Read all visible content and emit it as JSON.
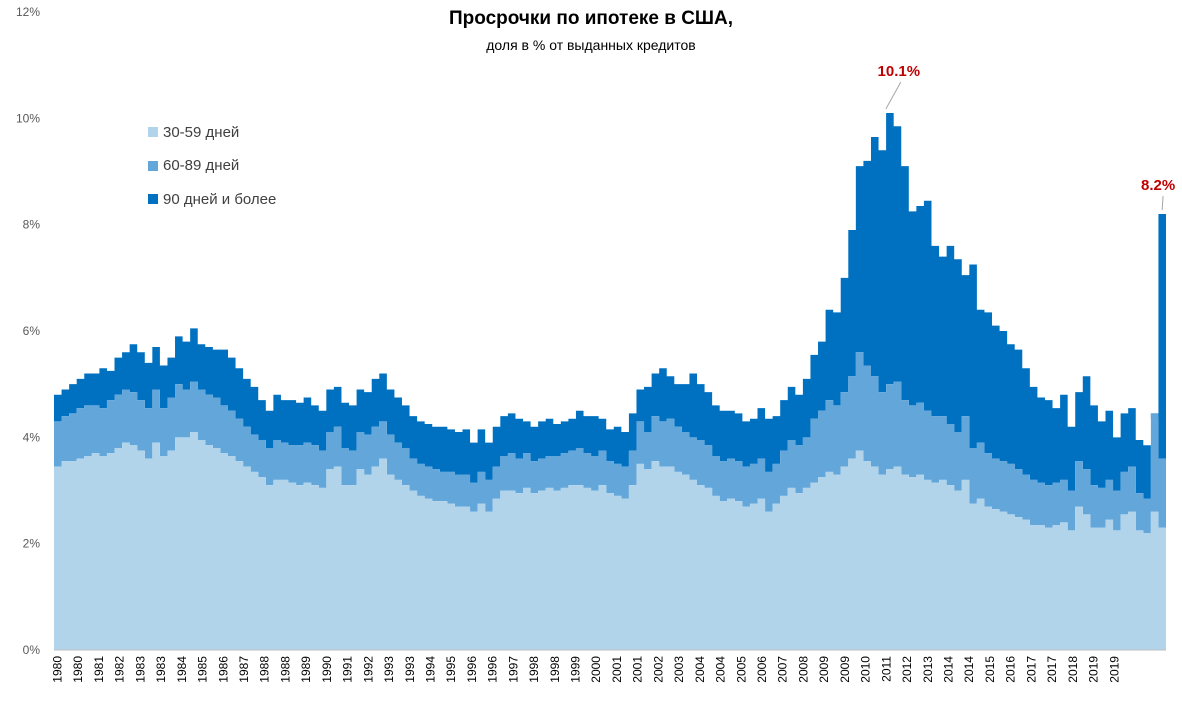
{
  "chart_data": {
    "type": "stacked-area",
    "title": "Просрочки по ипотеке в США,",
    "subtitle": "доля в % от выданных кредитов",
    "ylim": [
      0,
      12
    ],
    "y_ticks": [
      "0%",
      "2%",
      "4%",
      "6%",
      "8%",
      "10%",
      "12%"
    ],
    "legend": [
      "30-59 дней",
      "60-89 дней",
      "90 дней и более"
    ],
    "colors": [
      "#b2d4eb",
      "#63a6da",
      "#0070c0"
    ],
    "annotations": [
      {
        "label": "10.1%",
        "year": 2010.0,
        "value": 10.1
      },
      {
        "label": "8.2%",
        "year": 2020.0,
        "value": 8.2
      }
    ],
    "x_labels": [
      "1980",
      "1980",
      "1981",
      "1982",
      "1983",
      "1983",
      "1984",
      "1985",
      "1986",
      "1987",
      "1988",
      "1988",
      "1989",
      "1990",
      "1991",
      "1992",
      "1993",
      "1993",
      "1994",
      "1995",
      "1996",
      "1996",
      "1997",
      "1998",
      "1998",
      "1999",
      "2000",
      "2001",
      "2001",
      "2002",
      "2003",
      "2004",
      "2004",
      "2005",
      "2006",
      "2007",
      "2008",
      "2009",
      "2009",
      "2010",
      "2011",
      "2012",
      "2013",
      "2014",
      "2014",
      "2015",
      "2016",
      "2017",
      "2017",
      "2018",
      "2019",
      "2019"
    ],
    "x_label_positions": [
      1980.0,
      1980.75,
      1981.5,
      1982.25,
      1983.0,
      1983.75,
      1984.5,
      1985.25,
      1986.0,
      1986.75,
      1987.5,
      1988.25,
      1989.0,
      1989.75,
      1990.5,
      1991.25,
      1992.0,
      1992.75,
      1993.5,
      1994.25,
      1995.0,
      1995.75,
      1996.5,
      1997.25,
      1998.0,
      1998.75,
      1999.5,
      2000.25,
      2001.0,
      2001.75,
      2002.5,
      2003.25,
      2004.0,
      2004.75,
      2005.5,
      2006.25,
      2007.0,
      2007.75,
      2008.5,
      2009.25,
      2010.0,
      2010.75,
      2011.5,
      2012.25,
      2013.0,
      2013.75,
      2014.5,
      2015.25,
      2016.0,
      2016.75,
      2017.5,
      2018.25
    ],
    "x_start": 1980.0,
    "x_end": 2020.25,
    "series": [
      {
        "name": "30-59 дней",
        "values": [
          3.45,
          3.55,
          3.55,
          3.6,
          3.65,
          3.7,
          3.65,
          3.7,
          3.8,
          3.9,
          3.85,
          3.75,
          3.6,
          3.9,
          3.65,
          3.75,
          4.0,
          4.0,
          4.1,
          3.95,
          3.85,
          3.8,
          3.7,
          3.65,
          3.55,
          3.45,
          3.35,
          3.25,
          3.1,
          3.2,
          3.2,
          3.15,
          3.1,
          3.15,
          3.1,
          3.05,
          3.4,
          3.45,
          3.1,
          3.1,
          3.4,
          3.3,
          3.45,
          3.6,
          3.3,
          3.2,
          3.1,
          3.0,
          2.9,
          2.85,
          2.8,
          2.8,
          2.75,
          2.7,
          2.7,
          2.6,
          2.75,
          2.6,
          2.85,
          3.0,
          3.0,
          2.95,
          3.05,
          2.95,
          3.0,
          3.05,
          3.0,
          3.05,
          3.1,
          3.1,
          3.05,
          3.0,
          3.1,
          2.95,
          2.9,
          2.85,
          3.1,
          3.5,
          3.4,
          3.55,
          3.45,
          3.45,
          3.35,
          3.3,
          3.2,
          3.1,
          3.05,
          2.9,
          2.8,
          2.85,
          2.8,
          2.7,
          2.75,
          2.85,
          2.6,
          2.75,
          2.9,
          3.05,
          2.95,
          3.05,
          3.15,
          3.25,
          3.35,
          3.3,
          3.45,
          3.6,
          3.75,
          3.55,
          3.45,
          3.3,
          3.4,
          3.45,
          3.3,
          3.25,
          3.3,
          3.2,
          3.15,
          3.2,
          3.1,
          3.0,
          3.2,
          2.75,
          2.85,
          2.7,
          2.65,
          2.6,
          2.55,
          2.5,
          2.45,
          2.35,
          2.35,
          2.3,
          2.35,
          2.4,
          2.25,
          2.7,
          2.55,
          2.3,
          2.3,
          2.45,
          2.25,
          2.55,
          2.6,
          2.25,
          2.2,
          2.6,
          2.3
        ],
        "tops": [
          4.3,
          4.4,
          4.45,
          4.55,
          4.6,
          4.6,
          4.55,
          4.7,
          4.8,
          4.9,
          4.85,
          4.7,
          4.55,
          4.9,
          4.55,
          4.75,
          5.0,
          4.9,
          5.05,
          4.9,
          4.8,
          4.75,
          4.6,
          4.5,
          4.35,
          4.2,
          4.05,
          3.95,
          3.8,
          3.95,
          3.9,
          3.85,
          3.85,
          3.9,
          3.85,
          3.75,
          4.1,
          4.2,
          3.8,
          3.75,
          4.1,
          4.05,
          4.2,
          4.3,
          4.05,
          3.9,
          3.8,
          3.6,
          3.5,
          3.45,
          3.4,
          3.35,
          3.35,
          3.3,
          3.3,
          3.15,
          3.35,
          3.2,
          3.45,
          3.65,
          3.7,
          3.6,
          3.7,
          3.55,
          3.6,
          3.65,
          3.65,
          3.7,
          3.75,
          3.8,
          3.7,
          3.65,
          3.75,
          3.55,
          3.5,
          3.45,
          3.75,
          4.3,
          4.1,
          4.4,
          4.3,
          4.35,
          4.2,
          4.1,
          4.0,
          3.95,
          3.85,
          3.65,
          3.55,
          3.6,
          3.55,
          3.45,
          3.5,
          3.6,
          3.35,
          3.5,
          3.75,
          3.95,
          3.85,
          4.0,
          4.35,
          4.5,
          4.7,
          4.6,
          4.85,
          5.15,
          5.6,
          5.35,
          5.15,
          4.85,
          5.0,
          5.05,
          4.7,
          4.6,
          4.65,
          4.5,
          4.4,
          4.4,
          4.25,
          4.1,
          4.4,
          3.8,
          3.9,
          3.7,
          3.6,
          3.55,
          3.5,
          3.4,
          3.3,
          3.2,
          3.15,
          3.1,
          3.15,
          3.2,
          3.0,
          3.55,
          3.4,
          3.1,
          3.05,
          3.2,
          3.0,
          3.35,
          3.45,
          2.95,
          2.85,
          4.45,
          3.6
        ],
        "totals": [
          4.8,
          4.9,
          5.0,
          5.1,
          5.2,
          5.2,
          5.3,
          5.25,
          5.5,
          5.6,
          5.75,
          5.6,
          5.4,
          5.7,
          5.35,
          5.5,
          5.9,
          5.8,
          6.05,
          5.75,
          5.7,
          5.65,
          5.65,
          5.5,
          5.3,
          5.1,
          4.95,
          4.7,
          4.5,
          4.8,
          4.7,
          4.7,
          4.65,
          4.75,
          4.6,
          4.5,
          4.9,
          4.95,
          4.65,
          4.6,
          4.9,
          4.85,
          5.1,
          5.2,
          4.9,
          4.75,
          4.6,
          4.4,
          4.3,
          4.25,
          4.2,
          4.2,
          4.15,
          4.1,
          4.15,
          3.9,
          4.15,
          3.9,
          4.2,
          4.4,
          4.45,
          4.35,
          4.3,
          4.2,
          4.3,
          4.35,
          4.25,
          4.3,
          4.35,
          4.5,
          4.4,
          4.4,
          4.35,
          4.15,
          4.2,
          4.1,
          4.45,
          4.9,
          4.95,
          5.2,
          5.3,
          5.15,
          5.0,
          5.0,
          5.2,
          5.0,
          4.85,
          4.6,
          4.5,
          4.5,
          4.45,
          4.3,
          4.35,
          4.55,
          4.35,
          4.4,
          4.7,
          4.95,
          4.8,
          5.1,
          5.55,
          5.8,
          6.4,
          6.35,
          7.0,
          7.9,
          9.1,
          9.2,
          9.65,
          9.4,
          10.1,
          9.85,
          9.1,
          8.25,
          8.35,
          8.45,
          7.6,
          7.4,
          7.6,
          7.35,
          7.05,
          7.25,
          6.4,
          6.35,
          6.1,
          6.0,
          5.75,
          5.65,
          5.3,
          4.95,
          4.75,
          4.7,
          4.55,
          4.8,
          4.2,
          4.85,
          5.15,
          4.6,
          4.3,
          4.5,
          4.0,
          4.45,
          4.55,
          3.95,
          3.85,
          4.35,
          8.2
        ]
      }
    ]
  }
}
